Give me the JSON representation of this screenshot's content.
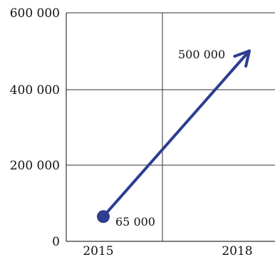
{
  "chart_data": {
    "type": "line",
    "title": "",
    "xlabel": "",
    "ylabel": "",
    "x_ticks": [
      "2015",
      "2018"
    ],
    "y_ticks": [
      "0",
      "200 000",
      "400 000",
      "600 000"
    ],
    "ylim": [
      0,
      600000
    ],
    "grid": true,
    "series": [
      {
        "points": [
          {
            "x": "2015",
            "y": 65000,
            "label": "65 000",
            "marker": "filled-circle"
          },
          {
            "x": "2018",
            "y": 500000,
            "label": "500 000",
            "marker": "arrowhead"
          }
        ],
        "color": "#2e3d8f"
      }
    ]
  }
}
